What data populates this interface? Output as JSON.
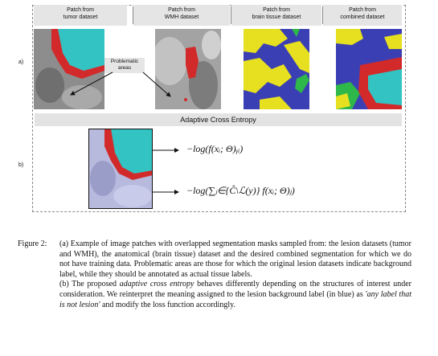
{
  "headers": {
    "tumor": "Patch from\ntumor dataset",
    "wmh": "Patch from\nWMH dataset",
    "brain": "Patch from\nbrain tissue dataset",
    "combined": "Patch from\ncombined dataset"
  },
  "row_a": "a)",
  "row_b": "b)",
  "problematic": "Problematic\nareas",
  "ace_title": "Adaptive Cross Entropy",
  "eq1": "−log(f(xᵢ; Θ)ᵧᵢ)",
  "eq2": "−log(∑ⱼ∈{Ĉ\\ℒ(y)} f(xᵢ; Θ)ⱼ)",
  "caption": {
    "label": "Figure 2:",
    "p1": "(a) Example of image patches with overlapped segmentation masks sampled from: the lesion datasets (tumor and WMH), the anatomical (brain tissue) dataset and the desired combined segmentation for which we do not have training data. Problematic areas are those for which the original lesion datasets indicate background label, while they should be annotated as actual tissue labels.",
    "p2_pre": "(b) The proposed ",
    "p2_em": "adaptive cross entropy",
    "p2_mid": " behaves differently depending on the structures of interest under consideration. We reinterpret the meaning assigned to the lesion background label (in blue) as ",
    "p2_quote": "'any label that is not lesion'",
    "p2_post": " and modify the loss function accordingly."
  }
}
